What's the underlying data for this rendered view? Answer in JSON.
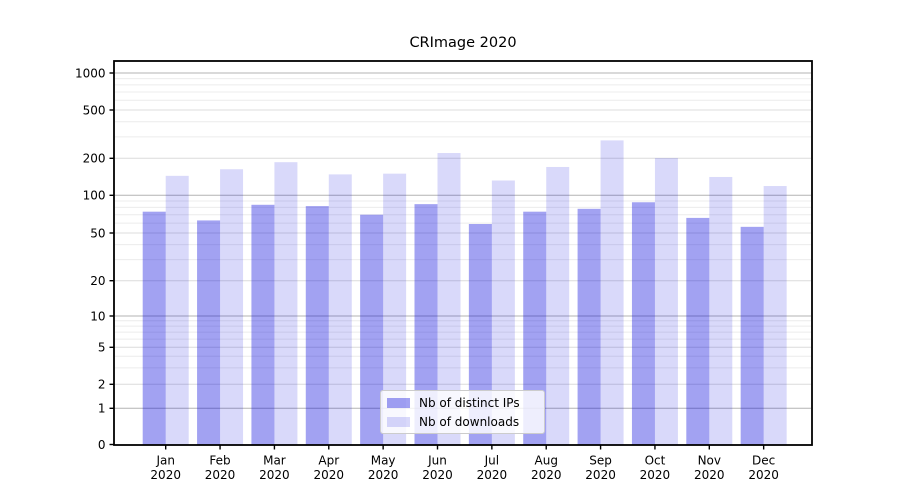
{
  "chart_data": {
    "type": "bar",
    "title": "CRImage 2020",
    "categories": [
      "Jan",
      "Feb",
      "Mar",
      "Apr",
      "May",
      "Jun",
      "Jul",
      "Aug",
      "Sep",
      "Oct",
      "Nov",
      "Dec"
    ],
    "year_label": "2020",
    "series": [
      {
        "name": "Nb of distinct IPs",
        "color": "rgba(0,0,220,0.365)",
        "values": [
          74,
          63,
          84,
          82,
          70,
          85,
          59,
          74,
          78,
          88,
          66,
          56
        ]
      },
      {
        "name": "Nb of downloads",
        "color": "rgba(0,0,220,0.149)",
        "values": [
          144,
          163,
          186,
          148,
          150,
          221,
          132,
          170,
          281,
          201,
          141,
          119
        ]
      }
    ],
    "xlabel": "",
    "ylabel": "",
    "yticks": [
      0,
      1,
      2,
      5,
      10,
      20,
      50,
      100,
      200,
      500,
      1000
    ],
    "ylim": [
      0,
      1250
    ],
    "yscale": "log-like (asinh), compressed below 10, linear 0-1",
    "grid": {
      "major": true,
      "minor": true
    },
    "legend_position": "lower center"
  }
}
